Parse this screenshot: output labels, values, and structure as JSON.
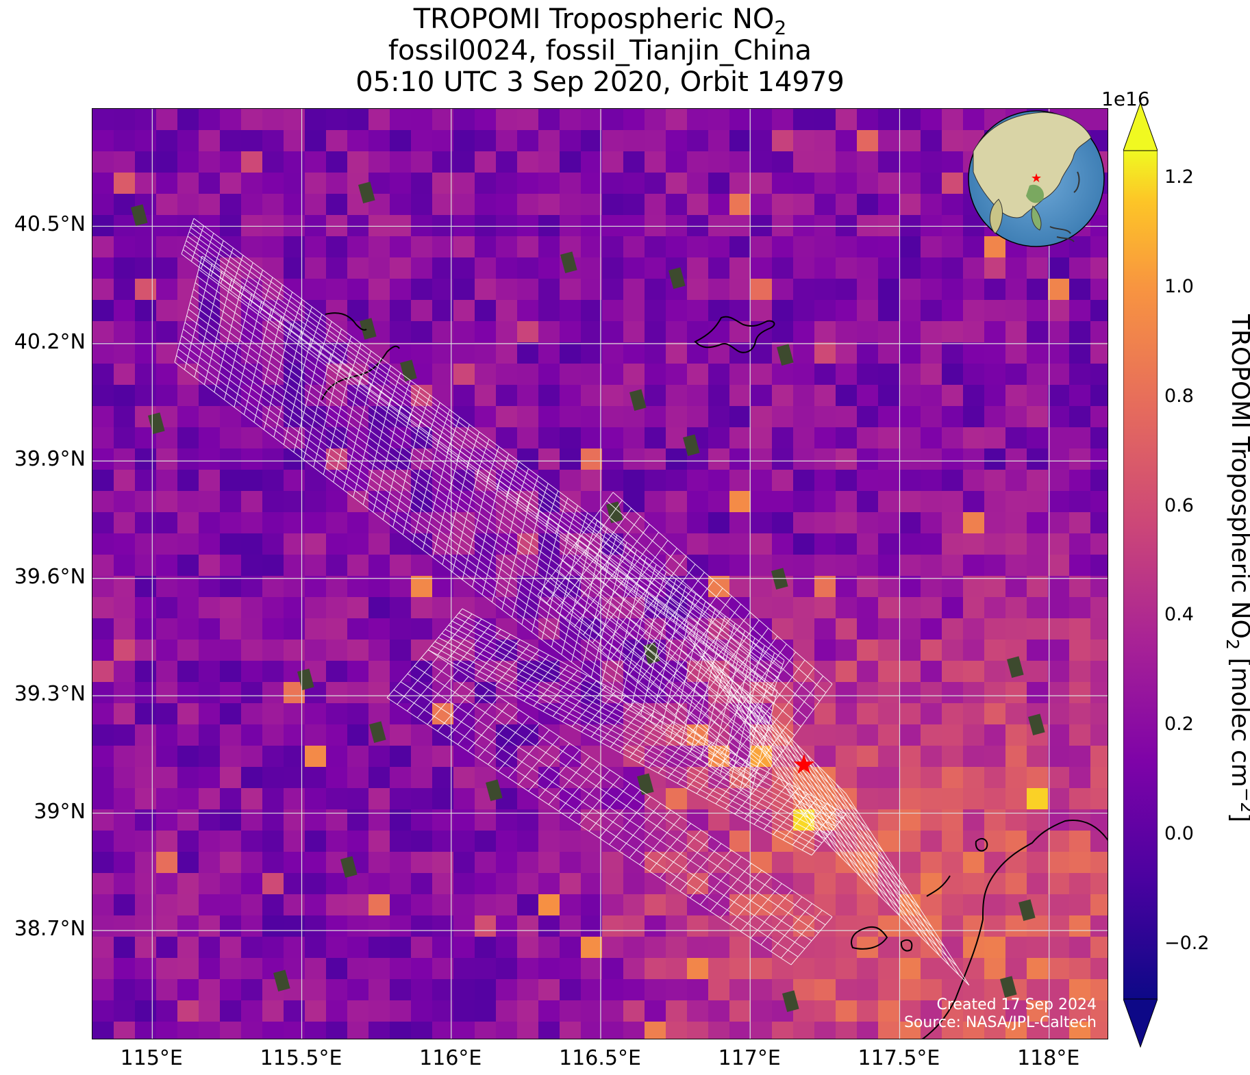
{
  "title": {
    "line1_prefix": "TROPOMI Tropospheric NO",
    "line1_sub": "2",
    "line2": "fossil0024, fossil_Tianjin_China",
    "line3": "05:10 UTC 3 Sep 2020, Orbit 14979"
  },
  "map": {
    "lat_range": [
      38.42,
      40.8
    ],
    "lon_range": [
      114.8,
      118.2
    ],
    "lat_ticks": [
      {
        "value": 40.5,
        "label": "40.5°N"
      },
      {
        "value": 40.2,
        "label": "40.2°N"
      },
      {
        "value": 39.9,
        "label": "39.9°N"
      },
      {
        "value": 39.6,
        "label": "39.6°N"
      },
      {
        "value": 39.3,
        "label": "39.3°N"
      },
      {
        "value": 39.0,
        "label": "39°N"
      },
      {
        "value": 38.7,
        "label": "38.7°N"
      }
    ],
    "lon_ticks": [
      {
        "value": 115.0,
        "label": "115°E"
      },
      {
        "value": 115.5,
        "label": "115.5°E"
      },
      {
        "value": 116.0,
        "label": "116°E"
      },
      {
        "value": 116.5,
        "label": "116.5°E"
      },
      {
        "value": 117.0,
        "label": "117°E"
      },
      {
        "value": 117.5,
        "label": "117.5°E"
      },
      {
        "value": 118.0,
        "label": "118°E"
      }
    ],
    "target": {
      "name": "fossil_Tianjin_China",
      "lon": 117.18,
      "lat": 39.12
    },
    "inset_globe": {
      "center_lon": 117.2,
      "center_lat": 39.1,
      "marker_color": "#ff0000"
    }
  },
  "colorbar": {
    "exponent": "1e16",
    "min": -0.3,
    "max": 1.25,
    "ticks": [
      "1.2",
      "1.0",
      "0.8",
      "0.6",
      "0.4",
      "0.2",
      "0.0",
      "−0.2"
    ],
    "tick_values": [
      1.2,
      1.0,
      0.8,
      0.6,
      0.4,
      0.2,
      0.0,
      -0.2
    ],
    "label_prefix": "TROPOMI Tropospheric NO",
    "label_sub": "2",
    "label_mid": " [molec cm",
    "label_sup": "−2",
    "label_suffix": "]",
    "colormap": "plasma",
    "extend": "both"
  },
  "credits": {
    "created": "Created 17 Sep 2024",
    "source": "Source: NASA/JPL-Caltech"
  },
  "colors": {
    "grid": "#dddddd",
    "swath_outline": "#ffffff",
    "coastline": "#000000",
    "star": "#ff0000"
  }
}
